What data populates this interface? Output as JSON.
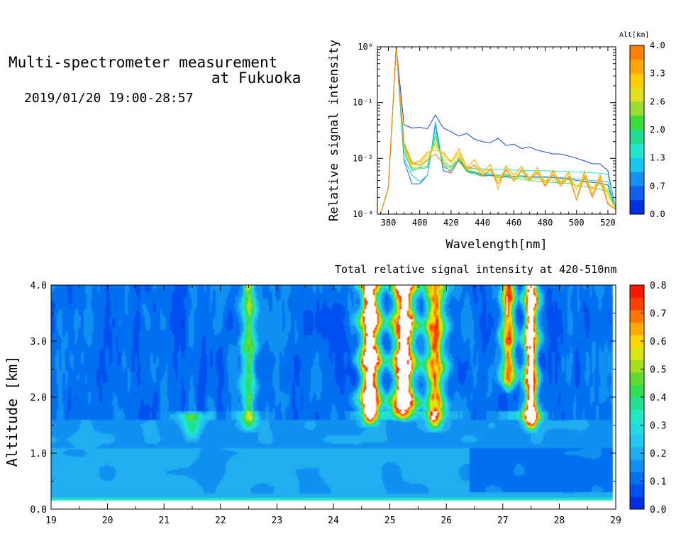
{
  "header": {
    "title_line1": "Multi-spectrometer measurement",
    "title_line2": "at Fukuoka",
    "datetime": "2019/01/20 19:00-28:57"
  },
  "chart_data": [
    {
      "type": "line",
      "xlabel": "Wavelength[nm]",
      "ylabel": "Relative signal intensity",
      "x_ticks": [
        "380",
        "400",
        "420",
        "440",
        "460",
        "480",
        "500",
        "520"
      ],
      "y_ticks": [
        "10⁻³",
        "10⁻²",
        "10⁻¹",
        "10⁰"
      ],
      "xlim": [
        373,
        525
      ],
      "ylim_log10": [
        -3,
        0
      ],
      "y_scale": "log",
      "x": [
        375,
        380,
        385,
        390,
        395,
        400,
        405,
        410,
        415,
        420,
        425,
        430,
        435,
        440,
        445,
        450,
        455,
        460,
        465,
        470,
        475,
        480,
        485,
        490,
        495,
        500,
        505,
        510,
        515,
        520,
        525
      ],
      "colorbar": {
        "label": "Alt[km]",
        "tick_labels": [
          "4.0",
          "3.3",
          "2.6",
          "2.0",
          "1.3",
          "0.7",
          "0.0"
        ],
        "colors": [
          "#ff7f00",
          "#ffa500",
          "#ffcc00",
          "#e0e020",
          "#9adc32",
          "#3cdc3c",
          "#20dc90",
          "#20e8d0",
          "#18c8f0",
          "#1890f0",
          "#1060f0",
          "#0030e0"
        ]
      },
      "series": [
        {
          "color": "#1848d0",
          "values": [
            0.0008,
            0.003,
            1.0,
            0.04,
            0.035,
            0.036,
            0.034,
            0.06,
            0.035,
            0.03,
            0.025,
            0.028,
            0.022,
            0.02,
            0.019,
            0.023,
            0.017,
            0.018,
            0.015,
            0.016,
            0.014,
            0.013,
            0.012,
            0.012,
            0.011,
            0.01,
            0.009,
            0.008,
            0.008,
            0.006,
            0.0012
          ]
        },
        {
          "color": "#1060f0",
          "values": [
            0.0008,
            0.003,
            1.0,
            0.009,
            0.0035,
            0.0035,
            0.005,
            0.04,
            0.006,
            0.0055,
            0.0095,
            0.0058,
            0.0055,
            0.005,
            0.005,
            0.0048,
            0.0048,
            0.0047,
            0.0047,
            0.0046,
            0.0046,
            0.0046,
            0.0045,
            0.0044,
            0.0043,
            0.004,
            0.0039,
            0.0037,
            0.0036,
            0.0033,
            0.0012
          ]
        },
        {
          "color": "#18c8f0",
          "values": [
            0.0008,
            0.003,
            1.0,
            0.01,
            0.005,
            0.0038,
            0.005,
            0.045,
            0.007,
            0.006,
            0.01,
            0.006,
            0.0056,
            0.0052,
            0.0053,
            0.005,
            0.005,
            0.0048,
            0.0049,
            0.0047,
            0.0047,
            0.0047,
            0.0046,
            0.0045,
            0.0044,
            0.0043,
            0.0042,
            0.004,
            0.0039,
            0.0038,
            0.0012
          ]
        },
        {
          "color": "#20e8d0",
          "values": [
            0.0008,
            0.003,
            1.0,
            0.012,
            0.0065,
            0.0065,
            0.0068,
            0.03,
            0.007,
            0.0072,
            0.0095,
            0.0068,
            0.0066,
            0.0065,
            0.0064,
            0.0063,
            0.0062,
            0.0062,
            0.0061,
            0.006,
            0.006,
            0.006,
            0.0059,
            0.0058,
            0.0058,
            0.0057,
            0.0056,
            0.0055,
            0.0054,
            0.0052,
            0.0012
          ]
        },
        {
          "color": "#3cdc3c",
          "values": [
            0.0008,
            0.003,
            1.0,
            0.014,
            0.006,
            0.0068,
            0.0073,
            0.025,
            0.0085,
            0.0066,
            0.009,
            0.0058,
            0.0052,
            0.0048,
            0.0049,
            0.0045,
            0.0046,
            0.0044,
            0.0043,
            0.004,
            0.0039,
            0.0038,
            0.0037,
            0.0036,
            0.0036,
            0.0032,
            0.0031,
            0.003,
            0.0028,
            0.0025,
            0.0012
          ]
        },
        {
          "color": "#9adc32",
          "values": [
            0.0008,
            0.003,
            1.0,
            0.016,
            0.0068,
            0.007,
            0.009,
            0.02,
            0.0095,
            0.0072,
            0.011,
            0.0062,
            0.0058,
            0.0052,
            0.0057,
            0.0048,
            0.0052,
            0.0046,
            0.0047,
            0.0042,
            0.0044,
            0.004,
            0.0041,
            0.0036,
            0.0042,
            0.0032,
            0.0038,
            0.003,
            0.0034,
            0.0027,
            0.0012
          ]
        },
        {
          "color": "#e0e020",
          "values": [
            0.0008,
            0.003,
            1.0,
            0.017,
            0.0075,
            0.008,
            0.011,
            0.018,
            0.011,
            0.0085,
            0.012,
            0.0065,
            0.0065,
            0.0052,
            0.0062,
            0.0045,
            0.0061,
            0.0044,
            0.0058,
            0.0042,
            0.0056,
            0.0039,
            0.0052,
            0.0035,
            0.0048,
            0.0031,
            0.0044,
            0.0028,
            0.004,
            0.0026,
            0.0012
          ]
        },
        {
          "color": "#ffcc00",
          "values": [
            0.0008,
            0.003,
            1.0,
            0.017,
            0.0078,
            0.0085,
            0.012,
            0.016,
            0.012,
            0.009,
            0.013,
            0.007,
            0.0072,
            0.006,
            0.0065,
            0.004,
            0.0068,
            0.0042,
            0.0066,
            0.0045,
            0.0059,
            0.0037,
            0.0057,
            0.0038,
            0.0054,
            0.0028,
            0.005,
            0.0027,
            0.0046,
            0.0022,
            0.0012
          ]
        },
        {
          "color": "#ffa500",
          "values": [
            0.0008,
            0.003,
            1.0,
            0.018,
            0.0082,
            0.009,
            0.013,
            0.014,
            0.013,
            0.0085,
            0.015,
            0.0068,
            0.0095,
            0.0055,
            0.0078,
            0.0028,
            0.0074,
            0.005,
            0.0072,
            0.0041,
            0.0068,
            0.0033,
            0.0062,
            0.0035,
            0.0058,
            0.0018,
            0.0059,
            0.0022,
            0.0051,
            0.0016,
            0.0012
          ]
        },
        {
          "color": "#ff7f00",
          "values": [
            0.0008,
            0.003,
            1.0,
            0.019,
            0.0085,
            0.0075,
            0.0095,
            0.012,
            0.008,
            0.0055,
            0.01,
            0.0062,
            0.0078,
            0.0048,
            0.0065,
            0.0035,
            0.0062,
            0.0039,
            0.006,
            0.0042,
            0.0055,
            0.0031,
            0.0052,
            0.0032,
            0.0048,
            0.0018,
            0.0047,
            0.002,
            0.0042,
            0.0015,
            0.0012
          ]
        }
      ]
    },
    {
      "type": "heatmap",
      "title": "Total relative signal intensity at 420-510nm",
      "xlabel": "",
      "ylabel": "Altitude [km]",
      "x_ticks": [
        "19",
        "20",
        "21",
        "22",
        "23",
        "24",
        "25",
        "26",
        "27",
        "28",
        "29"
      ],
      "y_ticks": [
        "0.0",
        "1.0",
        "2.0",
        "3.0",
        "4.0"
      ],
      "xlim": [
        19,
        29
      ],
      "ylim": [
        0,
        4
      ],
      "data_x_range": [
        19,
        28.95
      ],
      "data_y_range": [
        0.15,
        4.0
      ],
      "colorbar": {
        "tick_labels": [
          "0.0",
          "0.1",
          "0.2",
          "0.3",
          "0.4",
          "0.5",
          "0.6",
          "0.7",
          "0.8"
        ],
        "vmin": 0,
        "vmax": 0.8,
        "colors": [
          "#0030e0",
          "#0050f0",
          "#0070f0",
          "#1090f0",
          "#20aef0",
          "#20c8f0",
          "#20dce0",
          "#20e8c0",
          "#20e090",
          "#30dc50",
          "#60dc30",
          "#a0e020",
          "#d8e810",
          "#ffd800",
          "#ffaa00",
          "#ff7800",
          "#ff4000",
          "#ff1800"
        ],
        "over_color": "#ffffff"
      },
      "features": [
        {
          "x": 22.5,
          "alt_bottom": 1.5,
          "alt_top": 4.0,
          "peak": 0.38,
          "width": 0.12
        },
        {
          "x": 24.65,
          "alt_bottom": 1.6,
          "alt_top": 4.0,
          "peak": 0.95,
          "width": 0.17
        },
        {
          "x": 25.25,
          "alt_bottom": 1.7,
          "alt_top": 4.0,
          "peak": 0.95,
          "width": 0.2
        },
        {
          "x": 25.8,
          "alt_bottom": 1.5,
          "alt_top": 4.0,
          "peak": 0.55,
          "width": 0.17
        },
        {
          "x": 27.1,
          "alt_bottom": 2.2,
          "alt_top": 4.0,
          "peak": 0.6,
          "width": 0.12
        },
        {
          "x": 27.5,
          "alt_bottom": 1.5,
          "alt_top": 4.0,
          "peak": 0.9,
          "width": 0.12
        },
        {
          "x": 21.5,
          "alt_bottom": 1.3,
          "alt_top": 1.7,
          "peak": 0.22,
          "width": 0.18
        }
      ]
    }
  ]
}
